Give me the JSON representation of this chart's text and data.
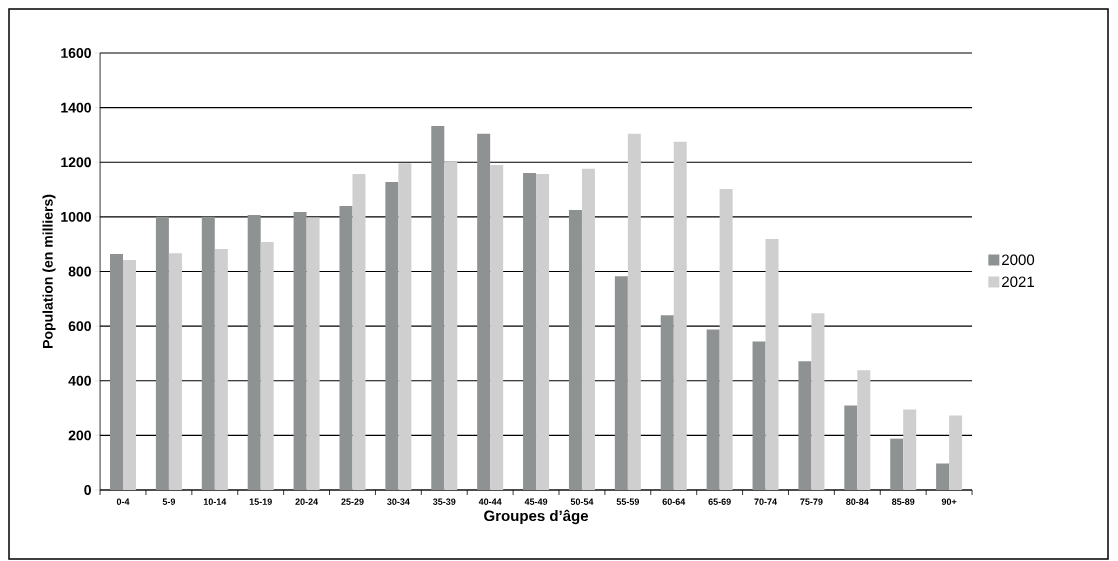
{
  "chart_data": {
    "type": "bar",
    "xlabel": "Groupes d’âge",
    "ylabel": "Population (en milliers)",
    "categories": [
      "0-4",
      "5-9",
      "10-14",
      "15-19",
      "20-24",
      "25-29",
      "30-34",
      "35-39",
      "40-44",
      "45-49",
      "50-54",
      "55-59",
      "60-64",
      "65-69",
      "70-74",
      "75-79",
      "80-84",
      "85-89",
      "90+"
    ],
    "series": [
      {
        "name": "2000",
        "color": "#8f9293",
        "values": [
          864,
          1000,
          1000,
          1007,
          1018,
          1040,
          1128,
          1333,
          1304,
          1161,
          1025,
          783,
          640,
          588,
          544,
          471,
          309,
          188,
          97
        ]
      },
      {
        "name": "2021",
        "color": "#cfcfcf",
        "values": [
          842,
          867,
          882,
          908,
          998,
          1157,
          1196,
          1201,
          1190,
          1157,
          1176,
          1304,
          1275,
          1102,
          919,
          647,
          438,
          295,
          273
        ]
      }
    ],
    "ylim": [
      0,
      1600
    ],
    "yticks": [
      0,
      200,
      400,
      600,
      800,
      1000,
      1200,
      1400,
      1600
    ],
    "grid": "y",
    "legend": "right"
  }
}
